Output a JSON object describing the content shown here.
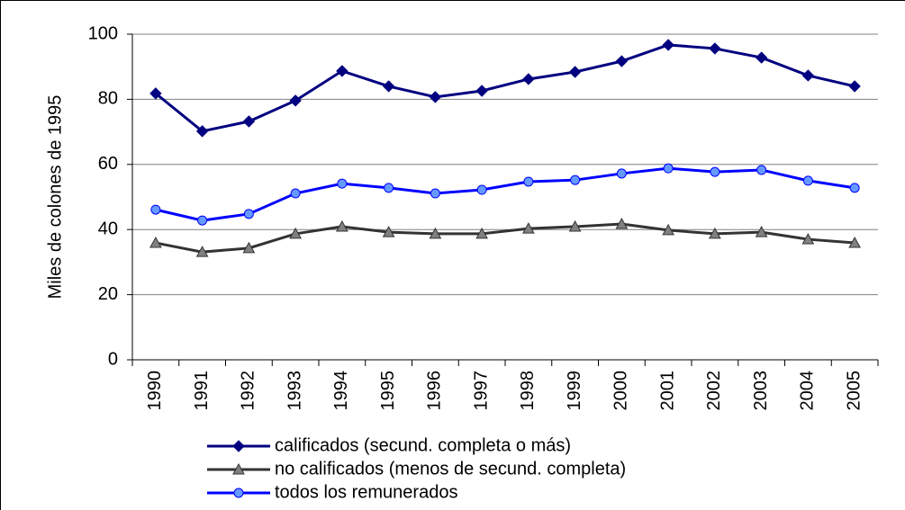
{
  "chart_data": {
    "type": "line",
    "y_label": "Miles de colones de 1995",
    "categories": [
      "1990",
      "1991",
      "1992",
      "1993",
      "1994",
      "1995",
      "1996",
      "1997",
      "1998",
      "1999",
      "2000",
      "2001",
      "2002",
      "2003",
      "2004",
      "2005"
    ],
    "series": [
      {
        "name": "calificados (secund. completa o más)",
        "color": "#000080",
        "marker": "diamond",
        "marker_fill": "#000080",
        "values": [
          81.8,
          70.2,
          73.2,
          79.6,
          88.7,
          84.0,
          80.7,
          82.6,
          86.2,
          88.4,
          91.7,
          96.7,
          95.6,
          92.8,
          87.3,
          84.0
        ]
      },
      {
        "name": "no calificados (menos de secund. completa)",
        "color": "#333333",
        "marker": "triangle",
        "marker_fill": "#808080",
        "values": [
          35.9,
          33.1,
          34.3,
          38.7,
          40.9,
          39.2,
          38.7,
          38.7,
          40.3,
          40.9,
          41.7,
          39.8,
          38.7,
          39.2,
          37.0,
          35.9
        ]
      },
      {
        "name": "todos los remunerados",
        "color": "#0000ff",
        "marker": "circle",
        "marker_fill": "#6699ff",
        "values": [
          46.1,
          42.8,
          44.8,
          51.1,
          54.1,
          52.8,
          51.1,
          52.2,
          54.7,
          55.2,
          57.2,
          58.8,
          57.7,
          58.3,
          55.0,
          52.8
        ]
      }
    ],
    "ylim": [
      0,
      100
    ],
    "yticks": [
      0,
      20,
      40,
      60,
      80,
      100
    ],
    "grid": true,
    "legend": "bottom"
  }
}
